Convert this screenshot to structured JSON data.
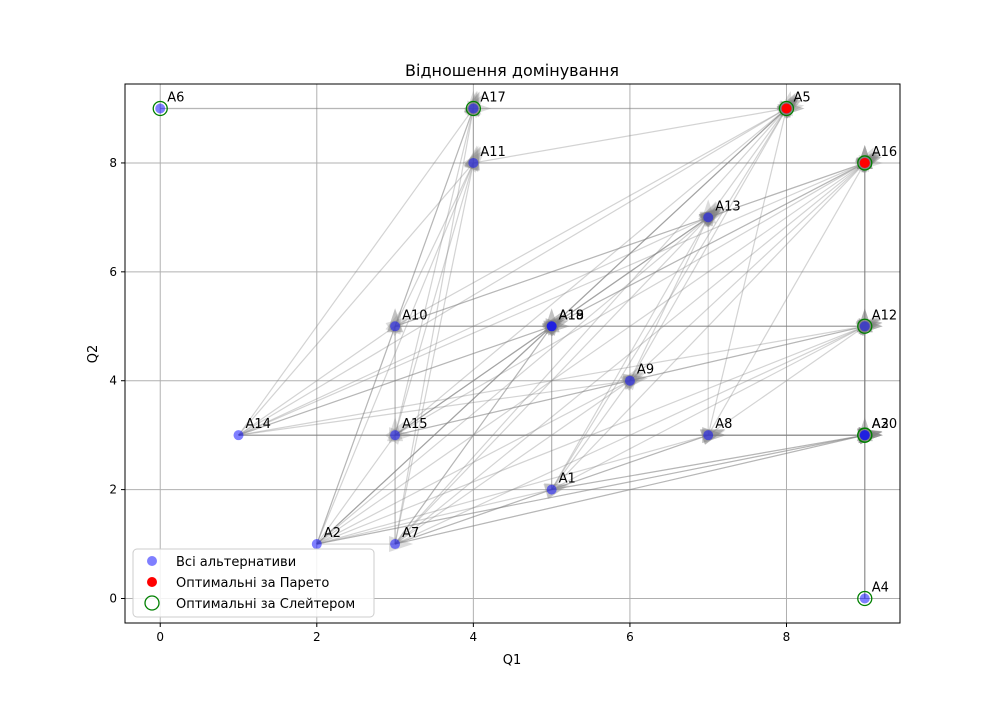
{
  "chart_data": {
    "type": "scatter",
    "title": "Відношення домінування",
    "xlabel": "Q1",
    "ylabel": "Q2",
    "xlim": [
      -0.45,
      9.45
    ],
    "ylim": [
      -0.45,
      9.45
    ],
    "xticks": [
      0,
      2,
      4,
      6,
      8
    ],
    "yticks": [
      0,
      2,
      4,
      6,
      8
    ],
    "grid": true,
    "legend_position": "bottom-left",
    "colors": {
      "all": "#0000ff",
      "pareto": "#ff0000",
      "slater": "#008000",
      "arrows": "#808080",
      "grid": "#b0b0b0"
    },
    "points": [
      {
        "label": "A1",
        "x": 5,
        "y": 2
      },
      {
        "label": "A2",
        "x": 2,
        "y": 1
      },
      {
        "label": "A3",
        "x": 9,
        "y": 3
      },
      {
        "label": "A4",
        "x": 9,
        "y": 0
      },
      {
        "label": "A5",
        "x": 8,
        "y": 9
      },
      {
        "label": "A6",
        "x": 0,
        "y": 9
      },
      {
        "label": "A7",
        "x": 3,
        "y": 1
      },
      {
        "label": "A8",
        "x": 7,
        "y": 3
      },
      {
        "label": "A9",
        "x": 6,
        "y": 4
      },
      {
        "label": "A10",
        "x": 3,
        "y": 5
      },
      {
        "label": "A11",
        "x": 4,
        "y": 8
      },
      {
        "label": "A12",
        "x": 9,
        "y": 5
      },
      {
        "label": "A13",
        "x": 7,
        "y": 7
      },
      {
        "label": "A14",
        "x": 1,
        "y": 3
      },
      {
        "label": "A15",
        "x": 3,
        "y": 3
      },
      {
        "label": "A16",
        "x": 9,
        "y": 8
      },
      {
        "label": "A17",
        "x": 4,
        "y": 9
      },
      {
        "label": "A18",
        "x": 5,
        "y": 5
      },
      {
        "label": "A19",
        "x": 5,
        "y": 5
      },
      {
        "label": "A20",
        "x": 9,
        "y": 3
      }
    ],
    "pareto_optimal": [
      "A5",
      "A16"
    ],
    "slater_optimal": [
      "A3",
      "A4",
      "A5",
      "A6",
      "A12",
      "A16",
      "A17",
      "A20"
    ],
    "legend": {
      "all": "Всі альтернативи",
      "pareto": "Оптимальні за Парето",
      "slater": "Оптимальні за Слейтером"
    }
  }
}
